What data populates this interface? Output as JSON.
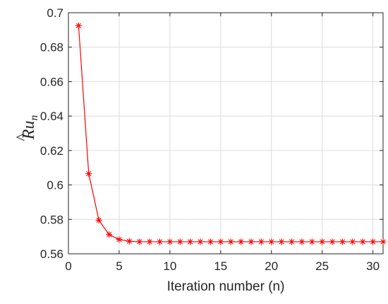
{
  "chart_data": {
    "type": "line",
    "title": "",
    "xlabel": "Iteration number (n)",
    "ylabel": {
      "base": "Ru",
      "hat": "^",
      "subscript": "n"
    },
    "xlim": [
      0,
      31
    ],
    "ylim": [
      0.56,
      0.7
    ],
    "xticks": [
      0,
      5,
      10,
      15,
      20,
      25,
      30
    ],
    "yticks": [
      0.56,
      0.58,
      0.6,
      0.62,
      0.64,
      0.66,
      0.68,
      0.7
    ],
    "ytick_labels": [
      "0.56",
      "0.58",
      "0.6",
      "0.62",
      "0.64",
      "0.66",
      "0.68",
      "0.7"
    ],
    "grid": true,
    "series": [
      {
        "color": "#ff0000",
        "marker": "asterisk",
        "x": [
          1,
          2,
          3,
          4,
          5,
          6,
          7,
          8,
          9,
          10,
          11,
          12,
          13,
          14,
          15,
          16,
          17,
          18,
          19,
          20,
          21,
          22,
          23,
          24,
          25,
          26,
          27,
          28,
          29,
          30,
          31
        ],
        "y": [
          0.6925,
          0.6065,
          0.5795,
          0.5712,
          0.5683,
          0.5673,
          0.567,
          0.567,
          0.567,
          0.567,
          0.567,
          0.567,
          0.567,
          0.567,
          0.567,
          0.567,
          0.567,
          0.567,
          0.567,
          0.567,
          0.567,
          0.567,
          0.567,
          0.567,
          0.567,
          0.567,
          0.567,
          0.567,
          0.567,
          0.567,
          0.567
        ]
      }
    ]
  }
}
